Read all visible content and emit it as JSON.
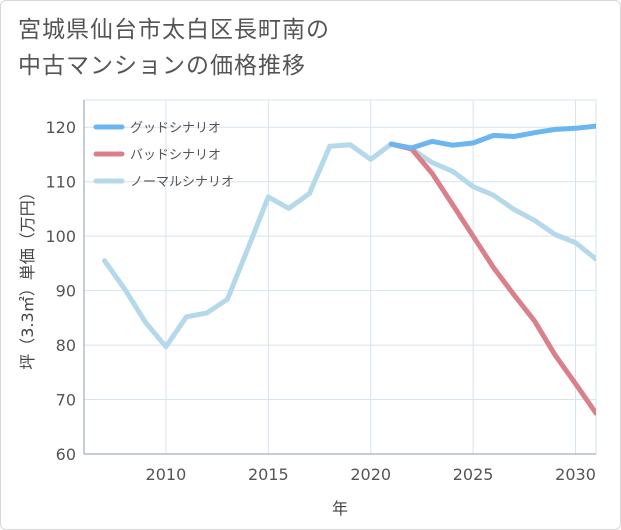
{
  "chart_data": {
    "type": "line",
    "title_lines": [
      "宮城県仙台市太白区長町南の",
      "中古マンションの価格推移"
    ],
    "xlabel": "年",
    "ylabel": "坪（3.3㎡）単価（万円）",
    "xlim": [
      2006,
      2031
    ],
    "ylim": [
      60,
      125
    ],
    "x_ticks": [
      2010,
      2015,
      2020,
      2025,
      2030
    ],
    "x_tick_labels": [
      "2010",
      "2015",
      "2020",
      "2025",
      "2030"
    ],
    "y_ticks": [
      60,
      70,
      80,
      90,
      100,
      110,
      120
    ],
    "y_tick_labels": [
      "60",
      "70",
      "80",
      "90",
      "100",
      "110",
      "120"
    ],
    "grid": true,
    "legend_position": "top-left",
    "series": [
      {
        "name": "グッドシナリオ",
        "color": "#6bb6f0",
        "x": [
          2021,
          2022,
          2023,
          2024,
          2025,
          2026,
          2027,
          2028,
          2029,
          2030,
          2031
        ],
        "values": [
          116.9,
          116.2,
          117.4,
          116.7,
          117.1,
          118.5,
          118.3,
          119.0,
          119.6,
          119.8,
          120.2
        ]
      },
      {
        "name": "バッドシナリオ",
        "color": "#d9808b",
        "x": [
          2021,
          2022,
          2023,
          2024,
          2025,
          2026,
          2027,
          2028,
          2029,
          2030,
          2031
        ],
        "values": [
          116.9,
          116.0,
          111.5,
          105.8,
          100.0,
          94.2,
          89.2,
          84.4,
          78.2,
          72.9,
          67.5
        ]
      },
      {
        "name": "ノーマルシナリオ",
        "color": "#b5d9ea",
        "x": [
          2007,
          2008,
          2009,
          2010,
          2011,
          2012,
          2013,
          2014,
          2015,
          2016,
          2017,
          2018,
          2019,
          2020,
          2021,
          2022,
          2023,
          2024,
          2025,
          2026,
          2027,
          2028,
          2029,
          2030,
          2031
        ],
        "values": [
          95.5,
          90.2,
          84.2,
          79.7,
          85.2,
          85.9,
          88.4,
          97.7,
          107.2,
          105.1,
          107.8,
          116.5,
          116.8,
          114.1,
          116.9,
          116.0,
          113.5,
          111.9,
          109.1,
          107.5,
          104.9,
          102.9,
          100.3,
          98.8,
          95.8
        ]
      }
    ]
  }
}
